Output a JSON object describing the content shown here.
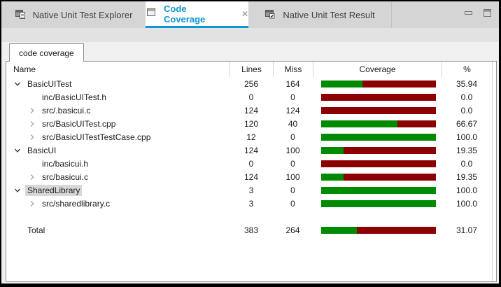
{
  "window": {
    "tabs": [
      {
        "label": "Native Unit Test Explorer",
        "active": false,
        "icon": "test-explorer-icon"
      },
      {
        "label": "Code Coverage",
        "active": true,
        "icon": "window-icon",
        "close_glyph": "✕"
      },
      {
        "label": "Native Unit Test Result",
        "active": false,
        "icon": "test-result-icon"
      }
    ],
    "controls": [
      "minimize",
      "maximize"
    ]
  },
  "subtab": {
    "label": "code coverage"
  },
  "table": {
    "columns": [
      "Name",
      "Lines",
      "Miss",
      "Coverage",
      "%"
    ],
    "rows": [
      {
        "name": "BasicUITest",
        "level": 0,
        "expander": "down",
        "lines": "256",
        "miss": "164",
        "pct": "35.94",
        "coverage": 35.94
      },
      {
        "name": "inc/BasicUITest.h",
        "level": 1,
        "expander": "none",
        "lines": "0",
        "miss": "0",
        "pct": "0.0",
        "coverage": 0
      },
      {
        "name": "src/.basicui.c",
        "level": 1,
        "expander": "right",
        "lines": "124",
        "miss": "124",
        "pct": "0.0",
        "coverage": 0
      },
      {
        "name": "src/BasicUITest.cpp",
        "level": 1,
        "expander": "right",
        "lines": "120",
        "miss": "40",
        "pct": "66.67",
        "coverage": 66.67
      },
      {
        "name": "src/BasicUITestTestCase.cpp",
        "level": 1,
        "expander": "right",
        "lines": "12",
        "miss": "0",
        "pct": "100.0",
        "coverage": 100
      },
      {
        "name": "BasicUI",
        "level": 0,
        "expander": "down",
        "lines": "124",
        "miss": "100",
        "pct": "19.35",
        "coverage": 19.35
      },
      {
        "name": "inc/basicui.h",
        "level": 1,
        "expander": "none",
        "lines": "0",
        "miss": "0",
        "pct": "0.0",
        "coverage": 0
      },
      {
        "name": "src/basicui.c",
        "level": 1,
        "expander": "right",
        "lines": "124",
        "miss": "100",
        "pct": "19.35",
        "coverage": 19.35
      },
      {
        "name": "SharedLibrary",
        "level": 0,
        "expander": "down",
        "selected": true,
        "lines": "3",
        "miss": "0",
        "pct": "100.0",
        "coverage": 100
      },
      {
        "name": "src/sharedlibrary.c",
        "level": 1,
        "expander": "right",
        "lines": "3",
        "miss": "0",
        "pct": "100.0",
        "coverage": 100
      },
      {
        "spacer": true
      },
      {
        "name": "Total",
        "level": 0,
        "expander": "none",
        "lines": "383",
        "miss": "264",
        "pct": "31.07",
        "coverage": 31.07
      }
    ]
  },
  "colors": {
    "covered": "#008a00",
    "missed": "#8b0000",
    "accent": "#0e97d5"
  }
}
